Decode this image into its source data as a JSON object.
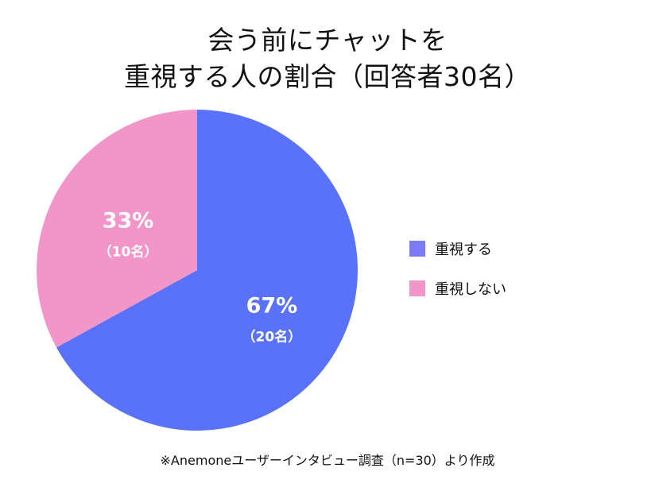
{
  "chart_data": {
    "type": "pie",
    "title_lines": [
      "会う前にチャットを",
      "重視する人の割合（回答者30名）"
    ],
    "slices": [
      {
        "label": "重視する",
        "value": 67,
        "value_text": "67%",
        "sub_text": "（20名）",
        "color": "#5a72fa"
      },
      {
        "label": "重視しない",
        "value": 33,
        "value_text": "33%",
        "sub_text": "（10名）",
        "color": "#f295c8"
      }
    ],
    "legend_position": "right"
  },
  "legend": {
    "items": [
      {
        "label": "重視する",
        "color": "#7b7bf6"
      },
      {
        "label": "重視しない",
        "color": "#f295c8"
      }
    ]
  },
  "footnote": "※Anemoneユーザーインタビュー調査（n=30）より作成"
}
